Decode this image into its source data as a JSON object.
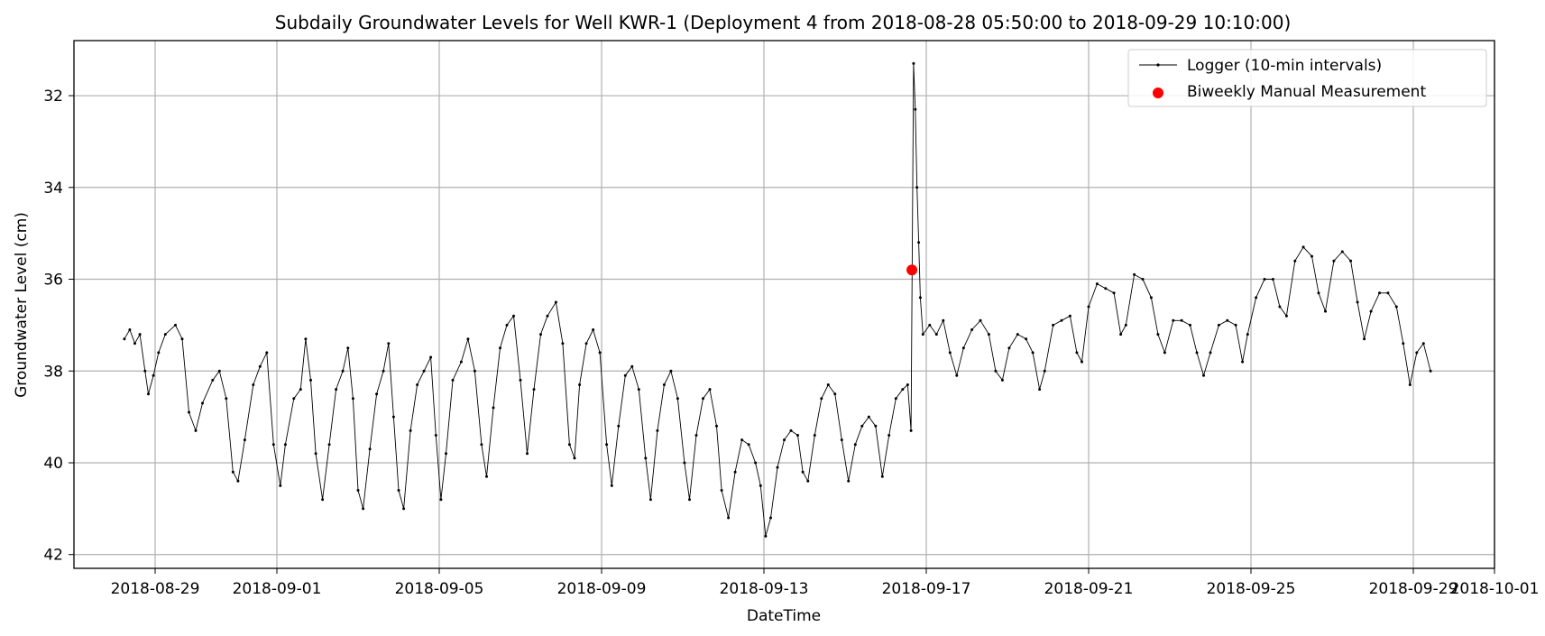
{
  "chart_data": {
    "type": "line",
    "title": "Subdaily Groundwater Levels for Well KWR-1 (Deployment 4 from 2018-08-28 05:50:00 to 2018-09-29 10:10:00)",
    "xlabel": "DateTime",
    "ylabel": "Groundwater Level (cm)",
    "x_type": "datetime",
    "xlim": [
      "2018-08-27T00:00",
      "2018-10-01T00:00"
    ],
    "ylim": [
      42.3,
      30.8
    ],
    "y_inverted": true,
    "x_ticks": [
      "2018-08-29",
      "2018-09-01",
      "2018-09-05",
      "2018-09-09",
      "2018-09-13",
      "2018-09-17",
      "2018-09-21",
      "2018-09-25",
      "2018-09-29",
      "2018-10-01"
    ],
    "y_ticks": [
      32,
      34,
      36,
      38,
      40,
      42
    ],
    "grid": true,
    "legend": {
      "placement": "top-right"
    },
    "series": [
      {
        "name": "Logger (10-min intervals)",
        "kind": "line",
        "color": "#000000",
        "points": [
          [
            "2018-08-28T05:50",
            37.3
          ],
          [
            "2018-08-28T09:00",
            37.1
          ],
          [
            "2018-08-28T12:00",
            37.4
          ],
          [
            "2018-08-28T15:00",
            37.2
          ],
          [
            "2018-08-28T18:00",
            38.0
          ],
          [
            "2018-08-28T20:00",
            38.5
          ],
          [
            "2018-08-28T23:00",
            38.1
          ],
          [
            "2018-08-29T02:00",
            37.6
          ],
          [
            "2018-08-29T06:00",
            37.2
          ],
          [
            "2018-08-29T12:00",
            37.0
          ],
          [
            "2018-08-29T16:00",
            37.3
          ],
          [
            "2018-08-29T20:00",
            38.9
          ],
          [
            "2018-08-30T00:00",
            39.3
          ],
          [
            "2018-08-30T04:00",
            38.7
          ],
          [
            "2018-08-30T10:00",
            38.2
          ],
          [
            "2018-08-30T14:00",
            38.0
          ],
          [
            "2018-08-30T18:00",
            38.6
          ],
          [
            "2018-08-30T22:00",
            40.2
          ],
          [
            "2018-08-31T01:00",
            40.4
          ],
          [
            "2018-08-31T05:00",
            39.5
          ],
          [
            "2018-08-31T10:00",
            38.3
          ],
          [
            "2018-08-31T14:00",
            37.9
          ],
          [
            "2018-08-31T18:00",
            37.6
          ],
          [
            "2018-08-31T22:00",
            39.6
          ],
          [
            "2018-09-01T02:00",
            40.5
          ],
          [
            "2018-09-01T05:00",
            39.6
          ],
          [
            "2018-09-01T10:00",
            38.6
          ],
          [
            "2018-09-01T14:00",
            38.4
          ],
          [
            "2018-09-01T17:00",
            37.3
          ],
          [
            "2018-09-01T20:00",
            38.2
          ],
          [
            "2018-09-01T23:00",
            39.8
          ],
          [
            "2018-09-02T03:00",
            40.8
          ],
          [
            "2018-09-02T07:00",
            39.6
          ],
          [
            "2018-09-02T11:00",
            38.4
          ],
          [
            "2018-09-02T15:00",
            38.0
          ],
          [
            "2018-09-02T18:00",
            37.5
          ],
          [
            "2018-09-02T21:00",
            38.6
          ],
          [
            "2018-09-03T00:00",
            40.6
          ],
          [
            "2018-09-03T03:00",
            41.0
          ],
          [
            "2018-09-03T07:00",
            39.7
          ],
          [
            "2018-09-03T11:00",
            38.5
          ],
          [
            "2018-09-03T15:00",
            38.0
          ],
          [
            "2018-09-03T18:00",
            37.4
          ],
          [
            "2018-09-03T21:00",
            39.0
          ],
          [
            "2018-09-04T00:00",
            40.6
          ],
          [
            "2018-09-04T03:00",
            41.0
          ],
          [
            "2018-09-04T07:00",
            39.3
          ],
          [
            "2018-09-04T11:00",
            38.3
          ],
          [
            "2018-09-04T15:00",
            38.0
          ],
          [
            "2018-09-04T19:00",
            37.7
          ],
          [
            "2018-09-04T22:00",
            39.4
          ],
          [
            "2018-09-05T01:00",
            40.8
          ],
          [
            "2018-09-05T04:00",
            39.8
          ],
          [
            "2018-09-05T08:00",
            38.2
          ],
          [
            "2018-09-05T13:00",
            37.8
          ],
          [
            "2018-09-05T17:00",
            37.3
          ],
          [
            "2018-09-05T21:00",
            38.0
          ],
          [
            "2018-09-06T01:00",
            39.6
          ],
          [
            "2018-09-06T04:00",
            40.3
          ],
          [
            "2018-09-06T08:00",
            38.8
          ],
          [
            "2018-09-06T12:00",
            37.5
          ],
          [
            "2018-09-06T16:00",
            37.0
          ],
          [
            "2018-09-06T20:00",
            36.8
          ],
          [
            "2018-09-07T00:00",
            38.2
          ],
          [
            "2018-09-07T04:00",
            39.8
          ],
          [
            "2018-09-07T08:00",
            38.4
          ],
          [
            "2018-09-07T12:00",
            37.2
          ],
          [
            "2018-09-07T16:00",
            36.8
          ],
          [
            "2018-09-07T21:00",
            36.5
          ],
          [
            "2018-09-08T01:00",
            37.4
          ],
          [
            "2018-09-08T05:00",
            39.6
          ],
          [
            "2018-09-08T08:00",
            39.9
          ],
          [
            "2018-09-08T11:00",
            38.3
          ],
          [
            "2018-09-08T15:00",
            37.4
          ],
          [
            "2018-09-08T19:00",
            37.1
          ],
          [
            "2018-09-08T23:00",
            37.6
          ],
          [
            "2018-09-09T03:00",
            39.6
          ],
          [
            "2018-09-09T06:00",
            40.5
          ],
          [
            "2018-09-09T10:00",
            39.2
          ],
          [
            "2018-09-09T14:00",
            38.1
          ],
          [
            "2018-09-09T18:00",
            37.9
          ],
          [
            "2018-09-09T22:00",
            38.4
          ],
          [
            "2018-09-10T02:00",
            39.9
          ],
          [
            "2018-09-10T05:00",
            40.8
          ],
          [
            "2018-09-10T09:00",
            39.3
          ],
          [
            "2018-09-10T13:00",
            38.3
          ],
          [
            "2018-09-10T17:00",
            38.0
          ],
          [
            "2018-09-10T21:00",
            38.6
          ],
          [
            "2018-09-11T01:00",
            40.0
          ],
          [
            "2018-09-11T04:00",
            40.8
          ],
          [
            "2018-09-11T08:00",
            39.4
          ],
          [
            "2018-09-11T12:00",
            38.6
          ],
          [
            "2018-09-11T16:00",
            38.4
          ],
          [
            "2018-09-11T20:00",
            39.2
          ],
          [
            "2018-09-11T23:00",
            40.6
          ],
          [
            "2018-09-12T03:00",
            41.2
          ],
          [
            "2018-09-12T07:00",
            40.2
          ],
          [
            "2018-09-12T11:00",
            39.5
          ],
          [
            "2018-09-12T15:00",
            39.6
          ],
          [
            "2018-09-12T19:00",
            40.0
          ],
          [
            "2018-09-12T22:00",
            40.5
          ],
          [
            "2018-09-13T01:00",
            41.6
          ],
          [
            "2018-09-13T04:00",
            41.2
          ],
          [
            "2018-09-13T08:00",
            40.1
          ],
          [
            "2018-09-13T12:00",
            39.5
          ],
          [
            "2018-09-13T16:00",
            39.3
          ],
          [
            "2018-09-13T20:00",
            39.4
          ],
          [
            "2018-09-13T23:00",
            40.2
          ],
          [
            "2018-09-14T02:00",
            40.4
          ],
          [
            "2018-09-14T06:00",
            39.4
          ],
          [
            "2018-09-14T10:00",
            38.6
          ],
          [
            "2018-09-14T14:00",
            38.3
          ],
          [
            "2018-09-14T18:00",
            38.5
          ],
          [
            "2018-09-14T22:00",
            39.5
          ],
          [
            "2018-09-15T02:00",
            40.4
          ],
          [
            "2018-09-15T06:00",
            39.6
          ],
          [
            "2018-09-15T10:00",
            39.2
          ],
          [
            "2018-09-15T14:00",
            39.0
          ],
          [
            "2018-09-15T18:00",
            39.2
          ],
          [
            "2018-09-15T22:00",
            40.3
          ],
          [
            "2018-09-16T02:00",
            39.4
          ],
          [
            "2018-09-16T06:00",
            38.6
          ],
          [
            "2018-09-16T10:00",
            38.4
          ],
          [
            "2018-09-16T13:00",
            38.3
          ],
          [
            "2018-09-16T15:00",
            39.3
          ],
          [
            "2018-09-16T16:30",
            31.3
          ],
          [
            "2018-09-16T17:30",
            32.3
          ],
          [
            "2018-09-16T18:30",
            34.0
          ],
          [
            "2018-09-16T19:30",
            35.2
          ],
          [
            "2018-09-16T20:30",
            36.4
          ],
          [
            "2018-09-16T22:00",
            37.2
          ],
          [
            "2018-09-17T02:00",
            37.0
          ],
          [
            "2018-09-17T06:00",
            37.2
          ],
          [
            "2018-09-17T10:00",
            36.9
          ],
          [
            "2018-09-17T14:00",
            37.6
          ],
          [
            "2018-09-17T18:00",
            38.1
          ],
          [
            "2018-09-17T22:00",
            37.5
          ],
          [
            "2018-09-18T03:00",
            37.1
          ],
          [
            "2018-09-18T08:00",
            36.9
          ],
          [
            "2018-09-18T13:00",
            37.2
          ],
          [
            "2018-09-18T17:00",
            38.0
          ],
          [
            "2018-09-18T21:00",
            38.2
          ],
          [
            "2018-09-19T01:00",
            37.5
          ],
          [
            "2018-09-19T06:00",
            37.2
          ],
          [
            "2018-09-19T11:00",
            37.3
          ],
          [
            "2018-09-19T15:00",
            37.6
          ],
          [
            "2018-09-19T19:00",
            38.4
          ],
          [
            "2018-09-19T22:00",
            38.0
          ],
          [
            "2018-09-20T03:00",
            37.0
          ],
          [
            "2018-09-20T08:00",
            36.9
          ],
          [
            "2018-09-20T13:00",
            36.8
          ],
          [
            "2018-09-20T17:00",
            37.6
          ],
          [
            "2018-09-20T20:00",
            37.8
          ],
          [
            "2018-09-21T00:00",
            36.6
          ],
          [
            "2018-09-21T05:00",
            36.1
          ],
          [
            "2018-09-21T10:00",
            36.2
          ],
          [
            "2018-09-21T15:00",
            36.3
          ],
          [
            "2018-09-21T19:00",
            37.2
          ],
          [
            "2018-09-21T22:00",
            37.0
          ],
          [
            "2018-09-22T03:00",
            35.9
          ],
          [
            "2018-09-22T08:00",
            36.0
          ],
          [
            "2018-09-22T13:00",
            36.4
          ],
          [
            "2018-09-22T17:00",
            37.2
          ],
          [
            "2018-09-22T21:00",
            37.6
          ],
          [
            "2018-09-23T02:00",
            36.9
          ],
          [
            "2018-09-23T07:00",
            36.9
          ],
          [
            "2018-09-23T12:00",
            37.0
          ],
          [
            "2018-09-23T16:00",
            37.6
          ],
          [
            "2018-09-23T20:00",
            38.1
          ],
          [
            "2018-09-24T00:00",
            37.6
          ],
          [
            "2018-09-24T05:00",
            37.0
          ],
          [
            "2018-09-24T10:00",
            36.9
          ],
          [
            "2018-09-24T15:00",
            37.0
          ],
          [
            "2018-09-24T19:00",
            37.8
          ],
          [
            "2018-09-24T22:00",
            37.2
          ],
          [
            "2018-09-25T03:00",
            36.4
          ],
          [
            "2018-09-25T08:00",
            36.0
          ],
          [
            "2018-09-25T13:00",
            36.0
          ],
          [
            "2018-09-25T17:00",
            36.6
          ],
          [
            "2018-09-25T21:00",
            36.8
          ],
          [
            "2018-09-26T02:00",
            35.6
          ],
          [
            "2018-09-26T07:00",
            35.3
          ],
          [
            "2018-09-26T12:00",
            35.5
          ],
          [
            "2018-09-26T16:00",
            36.3
          ],
          [
            "2018-09-26T20:00",
            36.7
          ],
          [
            "2018-09-27T01:00",
            35.6
          ],
          [
            "2018-09-27T06:00",
            35.4
          ],
          [
            "2018-09-27T11:00",
            35.6
          ],
          [
            "2018-09-27T15:00",
            36.5
          ],
          [
            "2018-09-27T19:00",
            37.3
          ],
          [
            "2018-09-27T23:00",
            36.7
          ],
          [
            "2018-09-28T04:00",
            36.3
          ],
          [
            "2018-09-28T09:00",
            36.3
          ],
          [
            "2018-09-28T14:00",
            36.6
          ],
          [
            "2018-09-28T18:00",
            37.4
          ],
          [
            "2018-09-28T22:00",
            38.3
          ],
          [
            "2018-09-29T02:00",
            37.6
          ],
          [
            "2018-09-29T06:00",
            37.4
          ],
          [
            "2018-09-29T10:10",
            38.0
          ]
        ]
      },
      {
        "name": "Biweekly Manual Measurement",
        "kind": "scatter",
        "color": "#ff0000",
        "points": [
          [
            "2018-09-16T15:30",
            35.8
          ]
        ]
      }
    ]
  }
}
